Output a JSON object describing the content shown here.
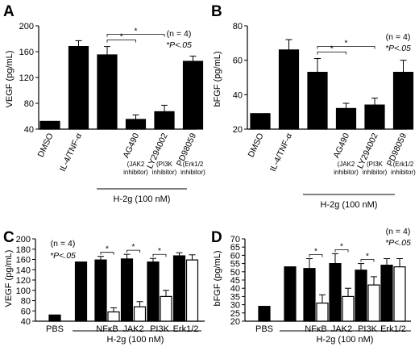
{
  "panels": [
    {
      "letter": "A",
      "ylabel": "VEGF (pg/mL)",
      "n_text": "(n = 4)",
      "p_text": "*P<.05",
      "treatment": "H-2g (100 nM)",
      "groups": [
        {
          "name": "DMSO"
        },
        {
          "name": "IL-4/TNF-α"
        },
        {
          "name": ""
        },
        {
          "name": "AG490",
          "sub1": "(JAK2",
          "sub2": "inhibitor)"
        },
        {
          "name": "LY294002",
          "sub1": "(PI3K",
          "sub2": "inhibitor)"
        },
        {
          "name": "PD98059",
          "sub1": "(Erk1/2",
          "sub2": "inhibitor)"
        }
      ]
    },
    {
      "letter": "B",
      "ylabel": "bFGF (pg/mL)",
      "n_text": "(n = 4)",
      "p_text": "*P<.05",
      "treatment": "H-2g (100 nM)",
      "groups": [
        {
          "name": "DMSO"
        },
        {
          "name": "IL-4/TNF-α"
        },
        {
          "name": ""
        },
        {
          "name": "AG490",
          "sub1": "(JAK2",
          "sub2": "inhibitor)"
        },
        {
          "name": "LY294002",
          "sub1": "(PI3K",
          "sub2": "inhibitor)"
        },
        {
          "name": "PD98059",
          "sub1": "(Erk1/2",
          "sub2": "inhibitor)"
        }
      ]
    },
    {
      "letter": "C",
      "ylabel": "VEGF (pg/mL)",
      "n_text": "(n = 4)",
      "p_text": "*P<.05",
      "treatment": "H-2g (100 nM)",
      "groups": [
        {
          "name": "PBS"
        },
        {
          "name": ""
        },
        {
          "name": "NFκB"
        },
        {
          "name": "JAK2"
        },
        {
          "name": "PI3K"
        },
        {
          "name": "Erk1/2"
        }
      ]
    },
    {
      "letter": "D",
      "ylabel": "bFGF (pg/mL)",
      "n_text": "(n = 4)",
      "p_text": "*P<.05",
      "treatment": "H-2g (100 nM)",
      "groups": [
        {
          "name": "PBS"
        },
        {
          "name": ""
        },
        {
          "name": "NFκB"
        },
        {
          "name": "JAK2"
        },
        {
          "name": "PI3K"
        },
        {
          "name": "Erk1/2"
        }
      ]
    }
  ],
  "chart_data": [
    {
      "type": "bar",
      "panel": "A",
      "categories": [
        "DMSO",
        "IL-4/TNF-α",
        "H-2g",
        "AG490",
        "LY294002",
        "PD98059"
      ],
      "series": [
        {
          "values": [
            52,
            168,
            155,
            55,
            67,
            145
          ],
          "errors": [
            0,
            9,
            13,
            7,
            10,
            8
          ],
          "color": "#000000"
        }
      ],
      "ylabel": "VEGF (pg/mL)",
      "ylim": [
        40,
        200
      ],
      "yticks": [
        40,
        80,
        120,
        160,
        200
      ],
      "significance": [
        {
          "from": 2,
          "to": 3,
          "label": "*"
        },
        {
          "from": 2,
          "to": 4,
          "label": "*"
        }
      ]
    },
    {
      "type": "bar",
      "panel": "B",
      "categories": [
        "DMSO",
        "IL-4/TNF-α",
        "H-2g",
        "AG490",
        "LY294002",
        "PD98059"
      ],
      "series": [
        {
          "values": [
            29,
            66,
            53,
            32,
            34,
            53
          ],
          "errors": [
            0,
            6,
            8,
            3,
            4,
            7
          ],
          "color": "#000000"
        }
      ],
      "ylabel": "bFGF (pg/mL)",
      "ylim": [
        20,
        80
      ],
      "yticks": [
        20,
        40,
        60,
        80
      ],
      "significance": [
        {
          "from": 2,
          "to": 3,
          "label": "*"
        },
        {
          "from": 2,
          "to": 4,
          "label": "*"
        }
      ]
    },
    {
      "type": "bar",
      "panel": "C",
      "categories": [
        "PBS",
        "H-2g",
        "NFκB",
        "JAK2",
        "PI3K",
        "Erk1/2"
      ],
      "series": [
        {
          "values": [
            52,
            155,
            159,
            161,
            155,
            167
          ],
          "errors": [
            0,
            0,
            7,
            9,
            7,
            6
          ],
          "color": "#000000"
        },
        {
          "values": [
            null,
            null,
            58,
            68,
            88,
            159
          ],
          "errors": [
            0,
            0,
            8,
            10,
            12,
            10
          ],
          "color": "#ffffff"
        }
      ],
      "ylabel": "VEGF (pg/mL)",
      "ylim": [
        40,
        200
      ],
      "yticks": [
        40,
        60,
        80,
        100,
        120,
        140,
        160,
        180,
        200
      ],
      "significance": [
        {
          "at": 2,
          "label": "*"
        },
        {
          "at": 3,
          "label": "*"
        },
        {
          "at": 4,
          "label": "*"
        }
      ]
    },
    {
      "type": "bar",
      "panel": "D",
      "categories": [
        "PBS",
        "H-2g",
        "NFκB",
        "JAK2",
        "PI3K",
        "Erk1/2"
      ],
      "series": [
        {
          "values": [
            29,
            53,
            52,
            55,
            51,
            54
          ],
          "errors": [
            0,
            0,
            6,
            6,
            4,
            4
          ],
          "color": "#000000"
        },
        {
          "values": [
            null,
            null,
            31,
            35,
            42,
            53
          ],
          "errors": [
            0,
            0,
            5,
            5,
            5,
            5
          ],
          "color": "#ffffff"
        }
      ],
      "ylabel": "bFGF (pg/mL)",
      "ylim": [
        20,
        70
      ],
      "yticks": [
        20,
        25,
        30,
        35,
        40,
        45,
        50,
        55,
        60,
        65,
        70
      ],
      "significance": [
        {
          "at": 2,
          "label": "*"
        },
        {
          "at": 3,
          "label": "*"
        },
        {
          "at": 4,
          "label": "*"
        }
      ]
    }
  ]
}
